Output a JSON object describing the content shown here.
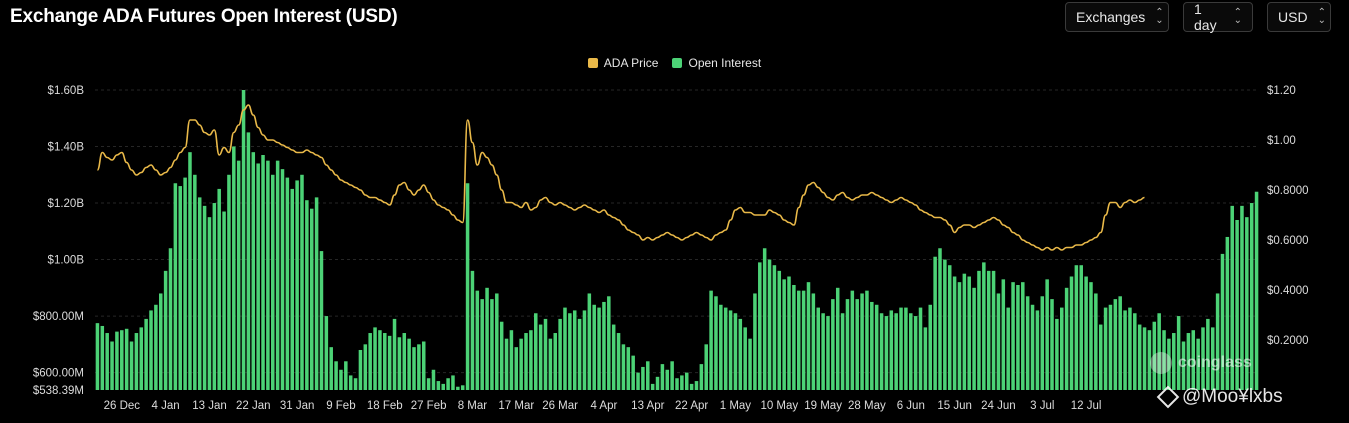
{
  "header": {
    "title": "Exchange ADA Futures Open Interest (USD)",
    "controls": {
      "exchanges": "Exchanges",
      "interval": "1 day",
      "currency": "USD"
    }
  },
  "watermark": {
    "brand": "coinglass",
    "overlay": "@Moo¥lxbs"
  },
  "colors": {
    "price": "#E9B949",
    "open_interest": "#4CD276",
    "background": "#000000"
  },
  "chart_data": {
    "type": "bar",
    "legend_position": "top-center",
    "grid": true,
    "x_tick_labels": [
      "26 Dec",
      "4 Jan",
      "13 Jan",
      "22 Jan",
      "31 Jan",
      "9 Feb",
      "18 Feb",
      "27 Feb",
      "8 Mar",
      "17 Mar",
      "26 Mar",
      "4 Apr",
      "13 Apr",
      "22 Apr",
      "1 May",
      "10 May",
      "19 May",
      "28 May",
      "6 Jun",
      "15 Jun",
      "24 Jun",
      "3 Jul",
      "12 Jul"
    ],
    "y_left": {
      "ticks": [
        "$538.39M",
        "$600.00M",
        "$800.00M",
        "$1.00B",
        "$1.20B",
        "$1.40B",
        "$1.60B"
      ],
      "tick_values": [
        538.39,
        600,
        800,
        1000,
        1200,
        1400,
        1600
      ],
      "range": [
        538.39,
        1600
      ],
      "unit": "USD M"
    },
    "y_right": {
      "ticks": [
        "$0.2000",
        "$0.4000",
        "$0.6000",
        "$0.8000",
        "$1.00",
        "$1.20"
      ],
      "tick_values": [
        0.2,
        0.4,
        0.6,
        0.8,
        1.0,
        1.2
      ],
      "range": [
        0.0,
        1.2
      ],
      "unit": "USD"
    },
    "series": [
      {
        "name": "Open Interest",
        "type": "bar",
        "axis": "left",
        "values": [
          775,
          765,
          740,
          710,
          745,
          750,
          755,
          710,
          740,
          760,
          790,
          820,
          840,
          880,
          960,
          1040,
          1270,
          1260,
          1290,
          1380,
          1300,
          1220,
          1190,
          1150,
          1200,
          1250,
          1170,
          1300,
          1400,
          1350,
          1600,
          1450,
          1380,
          1340,
          1370,
          1350,
          1300,
          1350,
          1320,
          1290,
          1250,
          1280,
          1300,
          1210,
          1180,
          1220,
          1030,
          800,
          690,
          640,
          610,
          640,
          590,
          580,
          680,
          700,
          740,
          760,
          750,
          740,
          730,
          790,
          725,
          740,
          720,
          690,
          700,
          710,
          580,
          610,
          570,
          560,
          580,
          590,
          550,
          555,
          1270,
          960,
          890,
          860,
          900,
          860,
          880,
          780,
          720,
          750,
          690,
          720,
          740,
          750,
          810,
          770,
          790,
          720,
          740,
          790,
          830,
          810,
          820,
          790,
          820,
          880,
          840,
          830,
          850,
          870,
          770,
          740,
          700,
          690,
          660,
          600,
          620,
          640,
          560,
          585,
          630,
          610,
          640,
          580,
          590,
          600,
          560,
          570,
          630,
          700,
          890,
          870,
          840,
          830,
          820,
          810,
          790,
          760,
          720,
          880,
          990,
          1040,
          1000,
          980,
          960,
          930,
          940,
          910,
          890,
          890,
          920,
          880,
          830,
          810,
          800,
          860,
          900,
          810,
          860,
          890,
          860,
          880,
          890,
          850,
          840,
          810,
          800,
          820,
          810,
          830,
          830,
          810,
          800,
          830,
          760,
          840,
          1010,
          1040,
          1000,
          980,
          940,
          920,
          950,
          940,
          900,
          960,
          990,
          960,
          960,
          880,
          930,
          830,
          920,
          910,
          920,
          870,
          840,
          820,
          870,
          930,
          860,
          790,
          830,
          900,
          940,
          980,
          980,
          940,
          920,
          880,
          770,
          830,
          840,
          860,
          870,
          820,
          830,
          810,
          770,
          760,
          750,
          780,
          810,
          750,
          720,
          740,
          800,
          710,
          740,
          750,
          720,
          760,
          790,
          760,
          880,
          1020,
          1080,
          1190,
          1140,
          1190,
          1150,
          1200,
          1240
        ]
      },
      {
        "name": "ADA Price",
        "type": "line",
        "axis": "right",
        "values": [
          0.88,
          0.95,
          0.93,
          0.92,
          0.94,
          0.95,
          0.91,
          0.88,
          0.86,
          0.87,
          0.89,
          0.9,
          0.88,
          0.86,
          0.87,
          0.89,
          0.92,
          0.95,
          0.97,
          1.08,
          1.08,
          1.06,
          1.03,
          1.02,
          1.04,
          0.94,
          0.97,
          0.95,
          1.03,
          1.06,
          1.12,
          1.14,
          1.1,
          1.05,
          1.02,
          1.0,
          1.0,
          0.99,
          0.98,
          0.97,
          0.96,
          0.95,
          0.95,
          0.96,
          0.95,
          0.94,
          0.93,
          0.9,
          0.88,
          0.86,
          0.84,
          0.83,
          0.82,
          0.81,
          0.8,
          0.78,
          0.77,
          0.77,
          0.76,
          0.75,
          0.74,
          0.78,
          0.82,
          0.83,
          0.8,
          0.78,
          0.8,
          0.82,
          0.79,
          0.76,
          0.74,
          0.73,
          0.72,
          0.7,
          0.68,
          0.67,
          1.08,
          0.99,
          0.9,
          0.95,
          0.93,
          0.9,
          0.86,
          0.8,
          0.75,
          0.75,
          0.74,
          0.73,
          0.75,
          0.72,
          0.73,
          0.76,
          0.77,
          0.75,
          0.74,
          0.75,
          0.74,
          0.73,
          0.72,
          0.73,
          0.74,
          0.73,
          0.72,
          0.71,
          0.72,
          0.7,
          0.69,
          0.68,
          0.66,
          0.64,
          0.63,
          0.62,
          0.6,
          0.61,
          0.6,
          0.61,
          0.62,
          0.63,
          0.62,
          0.61,
          0.6,
          0.61,
          0.62,
          0.63,
          0.62,
          0.61,
          0.6,
          0.62,
          0.63,
          0.64,
          0.68,
          0.72,
          0.73,
          0.71,
          0.71,
          0.7,
          0.7,
          0.7,
          0.72,
          0.71,
          0.7,
          0.68,
          0.67,
          0.66,
          0.73,
          0.78,
          0.82,
          0.83,
          0.81,
          0.79,
          0.77,
          0.76,
          0.78,
          0.79,
          0.77,
          0.76,
          0.77,
          0.78,
          0.78,
          0.79,
          0.78,
          0.77,
          0.76,
          0.75,
          0.76,
          0.77,
          0.76,
          0.75,
          0.74,
          0.72,
          0.71,
          0.7,
          0.69,
          0.69,
          0.68,
          0.66,
          0.63,
          0.65,
          0.66,
          0.66,
          0.65,
          0.66,
          0.67,
          0.68,
          0.69,
          0.68,
          0.66,
          0.65,
          0.63,
          0.62,
          0.6,
          0.59,
          0.58,
          0.57,
          0.56,
          0.57,
          0.56,
          0.57,
          0.56,
          0.57,
          0.57,
          0.58,
          0.58,
          0.59,
          0.6,
          0.61,
          0.63,
          0.7,
          0.75,
          0.75,
          0.73,
          0.75,
          0.76,
          0.75,
          0.76,
          0.77
        ]
      }
    ]
  }
}
